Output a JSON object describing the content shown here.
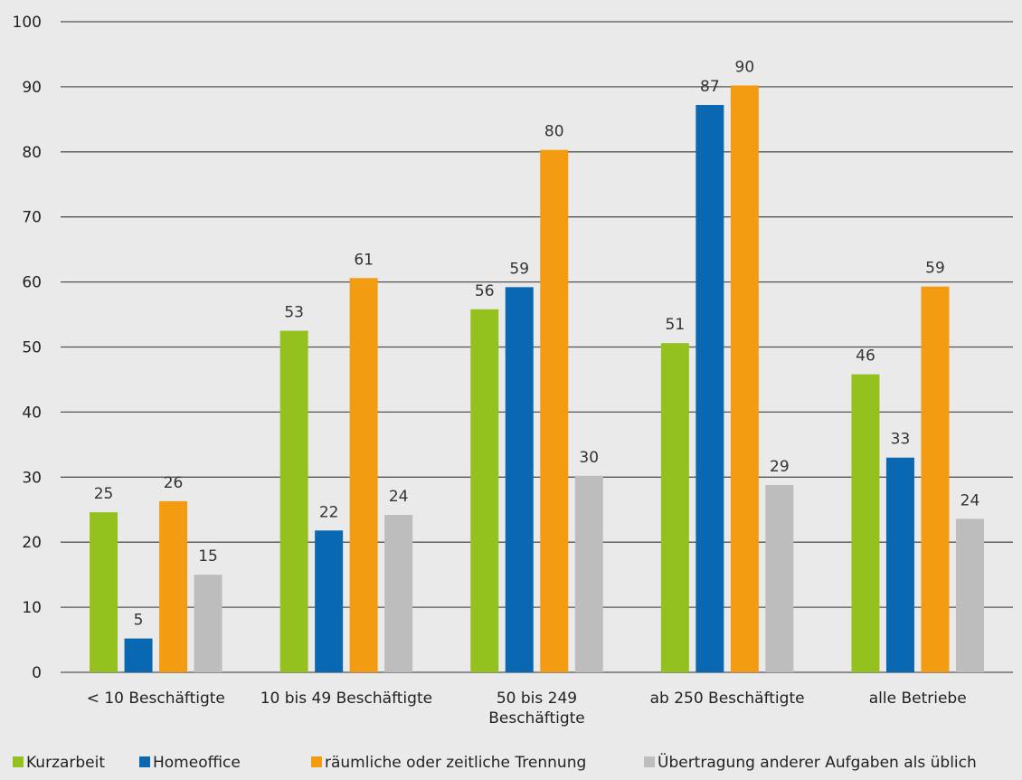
{
  "chart_data": {
    "type": "bar",
    "categories": [
      [
        "< 10 Beschäftigte"
      ],
      [
        "10 bis 49 Beschäftigte"
      ],
      [
        "50 bis 249",
        "Beschäftigte"
      ],
      [
        "ab 250 Beschäftigte"
      ],
      [
        "alle Betriebe"
      ]
    ],
    "series": [
      {
        "name": "Kurzarbeit",
        "color": "#95c11f",
        "values": [
          24.6,
          52.5,
          55.8,
          50.6,
          45.8
        ],
        "labels": [
          "25",
          "53",
          "56",
          "51",
          "46"
        ]
      },
      {
        "name": "Homeoffice",
        "color": "#0a67b1",
        "values": [
          5.2,
          21.8,
          59.2,
          87.2,
          33.0
        ],
        "labels": [
          "5",
          "22",
          "59",
          "87",
          "33"
        ]
      },
      {
        "name": "räumliche oder zeitliche Trennung",
        "color": "#f39c12",
        "values": [
          26.3,
          60.6,
          80.3,
          90.2,
          59.3
        ],
        "labels": [
          "26",
          "61",
          "80",
          "90",
          "59"
        ]
      },
      {
        "name": "Übertragung anderer Aufgaben als üblich",
        "color": "#bdbdbd",
        "values": [
          15.0,
          24.2,
          30.2,
          28.8,
          23.6
        ],
        "labels": [
          "15",
          "24",
          "30",
          "29",
          "24"
        ]
      }
    ],
    "yticks": [
      "0",
      "10",
      "20",
      "30",
      "40",
      "50",
      "60",
      "70",
      "80",
      "90",
      "100"
    ],
    "ylim": [
      0,
      100
    ],
    "grid": true,
    "legend_position": "bottom",
    "title": "",
    "xlabel": "",
    "ylabel": ""
  }
}
